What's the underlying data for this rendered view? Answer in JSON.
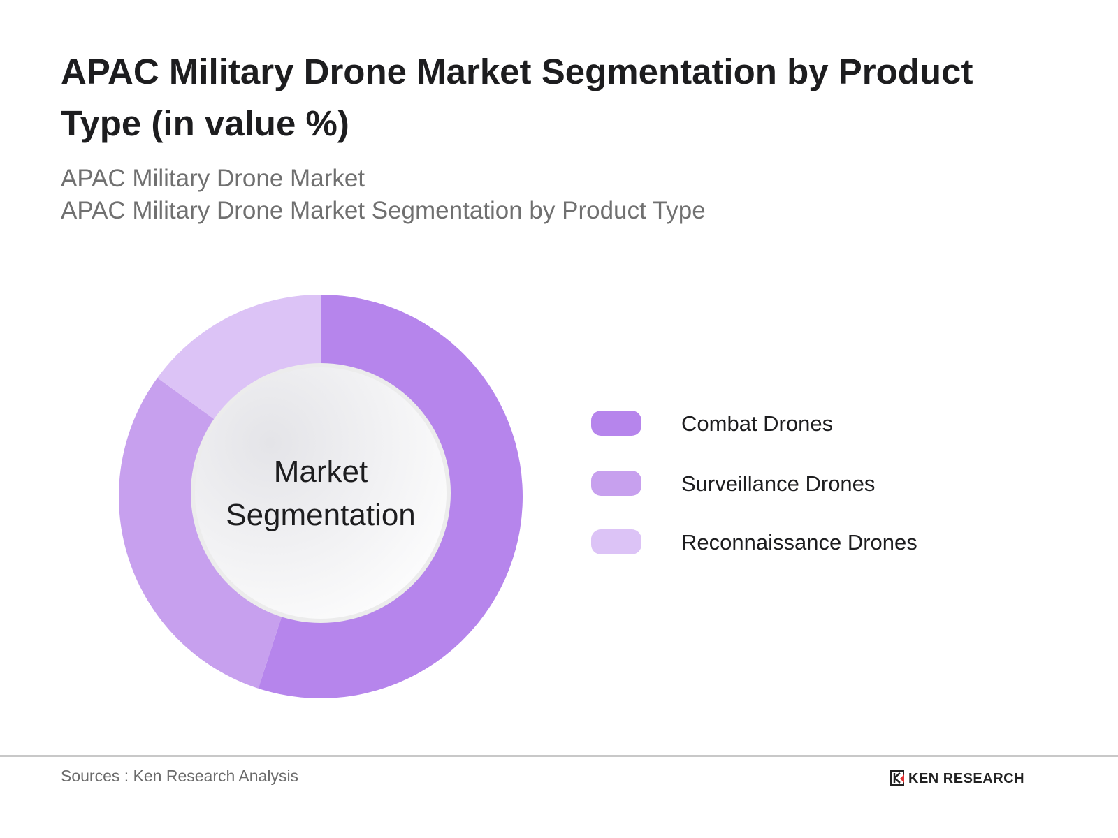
{
  "header": {
    "title": "APAC Military Drone Market Segmentation by Product Type (in value %)",
    "subtitle_1": "APAC Military Drone Market",
    "subtitle_2": "APAC Military Drone Market Segmentation by Product Type"
  },
  "chart_data": {
    "type": "pie",
    "style": "donut",
    "center_label": "Market Segmentation",
    "categories": [
      "Combat Drones",
      "Surveillance Drones",
      "Reconnaissance Drones"
    ],
    "values": [
      55,
      30,
      15
    ],
    "colors": [
      "#b685ec",
      "#c7a0ee",
      "#dcc3f6"
    ],
    "legend_position": "right"
  },
  "footer": {
    "source": "Sources : Ken Research Analysis",
    "logo_text": "KEN RESEARCH"
  }
}
